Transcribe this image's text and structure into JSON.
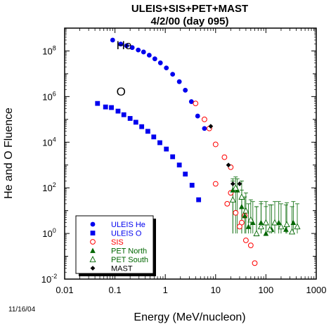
{
  "chart_data": {
    "type": "scatter",
    "title": "ULEIS+SIS+PET+MAST",
    "subtitle": "4/2/00 (day 095)",
    "xlabel": "Energy (MeV/nucleon)",
    "ylabel": "He and O Fluence",
    "xscale": "log",
    "yscale": "log",
    "xlim": [
      0.01,
      1000
    ],
    "ylim": [
      0.01,
      1000000000
    ],
    "x_ticks": [
      {
        "value": 0.01,
        "label": "0.01"
      },
      {
        "value": 0.1,
        "label": "0.1"
      },
      {
        "value": 1,
        "label": "1"
      },
      {
        "value": 10,
        "label": "10"
      },
      {
        "value": 100,
        "label": "100"
      },
      {
        "value": 1000,
        "label": "1000"
      }
    ],
    "y_ticks": [
      {
        "value": 0.01,
        "base": "10",
        "exp": "-2"
      },
      {
        "value": 1,
        "base": "10",
        "exp": "0"
      },
      {
        "value": 100,
        "base": "10",
        "exp": "2"
      },
      {
        "value": 10000,
        "base": "10",
        "exp": "4"
      },
      {
        "value": 1000000,
        "base": "10",
        "exp": "6"
      },
      {
        "value": 100000000,
        "base": "10",
        "exp": "8"
      }
    ],
    "legend_position": "bottom-left",
    "annotations": [
      {
        "text": "He",
        "x": 0.1,
        "y": 120000000
      },
      {
        "text": "O",
        "x": 0.1,
        "y": 1100000
      }
    ],
    "series": [
      {
        "name": "ULEIS He",
        "marker": "circle-filled",
        "color": "#0000ee",
        "points": [
          [
            0.09,
            300000000
          ],
          [
            0.13,
            200000000
          ],
          [
            0.17,
            170000000
          ],
          [
            0.22,
            140000000
          ],
          [
            0.29,
            110000000
          ],
          [
            0.37,
            90000000
          ],
          [
            0.48,
            65000000
          ],
          [
            0.62,
            45000000
          ],
          [
            0.8,
            30000000
          ],
          [
            1.05,
            18000000
          ],
          [
            1.4,
            9500000
          ],
          [
            1.9,
            4500000
          ],
          [
            2.5,
            1900000
          ],
          [
            3.3,
            600000
          ],
          [
            4.4,
            140000
          ],
          [
            6.0,
            40000
          ]
        ]
      },
      {
        "name": "ULEIS O",
        "marker": "square-filled",
        "color": "#0000ee",
        "points": [
          [
            0.045,
            500000
          ],
          [
            0.065,
            350000
          ],
          [
            0.085,
            330000
          ],
          [
            0.115,
            230000
          ],
          [
            0.15,
            160000
          ],
          [
            0.2,
            110000
          ],
          [
            0.26,
            75000
          ],
          [
            0.34,
            48000
          ],
          [
            0.45,
            30000
          ],
          [
            0.59,
            17000
          ],
          [
            0.78,
            9500
          ],
          [
            1.05,
            5000
          ],
          [
            1.4,
            2300
          ],
          [
            1.9,
            1000
          ],
          [
            2.5,
            400
          ],
          [
            3.4,
            130
          ],
          [
            4.6,
            30
          ]
        ]
      },
      {
        "name": "SIS",
        "marker": "circle-open",
        "color": "#ff0000",
        "points": [
          [
            4,
            500000
          ],
          [
            6,
            100000
          ],
          [
            7.5,
            40000
          ],
          [
            10,
            8000
          ],
          [
            15,
            2200
          ],
          [
            20,
            800
          ],
          [
            10,
            150
          ],
          [
            17,
            20
          ],
          [
            20,
            60
          ],
          [
            25,
            8
          ],
          [
            33,
            3
          ],
          [
            50,
            0.3
          ],
          [
            40,
            0.5
          ],
          [
            38,
            6
          ],
          [
            30,
            2
          ],
          [
            60,
            0.05
          ]
        ]
      },
      {
        "name": "PET North",
        "marker": "triangle-filled",
        "color": "#006600",
        "points": [
          [
            22,
            80,
            1,
            250
          ],
          [
            27,
            80,
            1,
            250
          ],
          [
            33,
            15,
            1,
            80
          ],
          [
            38,
            6,
            1,
            40
          ],
          [
            45,
            2,
            1,
            20
          ],
          [
            55,
            3,
            1,
            25
          ],
          [
            65,
            1,
            1,
            15
          ],
          [
            80,
            3,
            1,
            25
          ],
          [
            100,
            1,
            1,
            15
          ],
          [
            130,
            1.5,
            1,
            18
          ],
          [
            180,
            3,
            1,
            25
          ],
          [
            250,
            1.5,
            1,
            18
          ],
          [
            350,
            3,
            1,
            25
          ]
        ],
        "error_y": true
      },
      {
        "name": "PET South",
        "marker": "triangle-open",
        "color": "#006600",
        "points": [
          [
            22,
            30,
            1,
            200
          ],
          [
            25,
            100,
            1,
            300
          ],
          [
            33,
            40,
            1,
            200
          ],
          [
            40,
            10,
            1,
            60
          ],
          [
            50,
            4,
            1,
            30
          ],
          [
            65,
            1,
            1,
            15
          ],
          [
            80,
            2,
            1,
            20
          ],
          [
            100,
            3,
            1,
            25
          ],
          [
            120,
            1.5,
            1,
            18
          ],
          [
            150,
            3,
            1,
            25
          ],
          [
            200,
            2,
            1,
            20
          ],
          [
            260,
            2.5,
            1,
            22
          ],
          [
            330,
            1.2,
            1,
            15
          ],
          [
            420,
            2,
            1,
            20
          ]
        ],
        "error_y": true
      },
      {
        "name": "MAST",
        "marker": "diamond-filled",
        "color": "#000000",
        "points": [
          [
            8,
            50000
          ],
          [
            18,
            1000
          ],
          [
            22,
            150
          ],
          [
            30,
            150
          ]
        ]
      }
    ],
    "date_stamp": "11/16/04"
  },
  "legend_colors": {
    "ULEIS He": "#0000ee",
    "ULEIS O": "#0000ee",
    "SIS": "#ff0000",
    "PET North": "#006600",
    "PET South": "#006600",
    "MAST": "#000000"
  }
}
